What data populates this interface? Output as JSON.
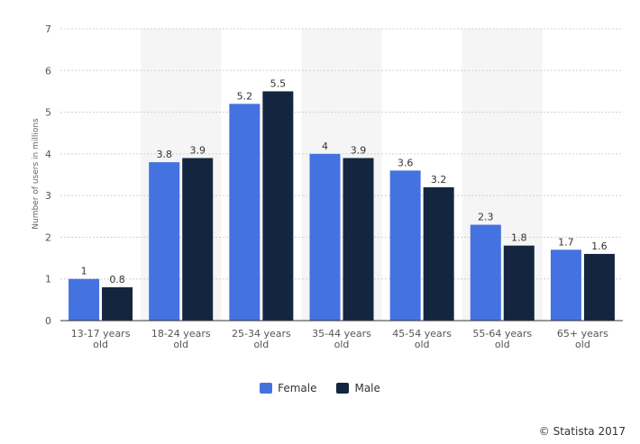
{
  "chart_data": {
    "type": "bar",
    "categories": [
      "13-17 years old",
      "18-24 years old",
      "25-34 years old",
      "35-44 years old",
      "45-54 years old",
      "55-64 years old",
      "65+ years old"
    ],
    "category_lines": [
      [
        "13-17 years",
        "old"
      ],
      [
        "18-24 years",
        "old"
      ],
      [
        "25-34 years",
        "old"
      ],
      [
        "35-44 years",
        "old"
      ],
      [
        "45-54 years",
        "old"
      ],
      [
        "55-64 years",
        "old"
      ],
      [
        "65+ years",
        "old"
      ]
    ],
    "series": [
      {
        "name": "Female",
        "color": "#4472e0",
        "values": [
          1,
          3.8,
          5.2,
          4,
          3.6,
          2.3,
          1.7
        ]
      },
      {
        "name": "Male",
        "color": "#14263f",
        "values": [
          0.8,
          3.9,
          5.5,
          3.9,
          3.2,
          1.8,
          1.6
        ]
      }
    ],
    "ylabel": "Number of users in millions",
    "xlabel": "",
    "ylim": [
      0,
      7
    ],
    "yticks": [
      0,
      1,
      2,
      3,
      4,
      5,
      6,
      7
    ],
    "grid": true,
    "legend_position": "bottom",
    "alternating_band_color": "#f5f5f5"
  },
  "legend": {
    "female_label": "Female",
    "male_label": "Male",
    "female_color": "#4472e0",
    "male_color": "#14263f"
  },
  "credit": "© Statista 2017"
}
